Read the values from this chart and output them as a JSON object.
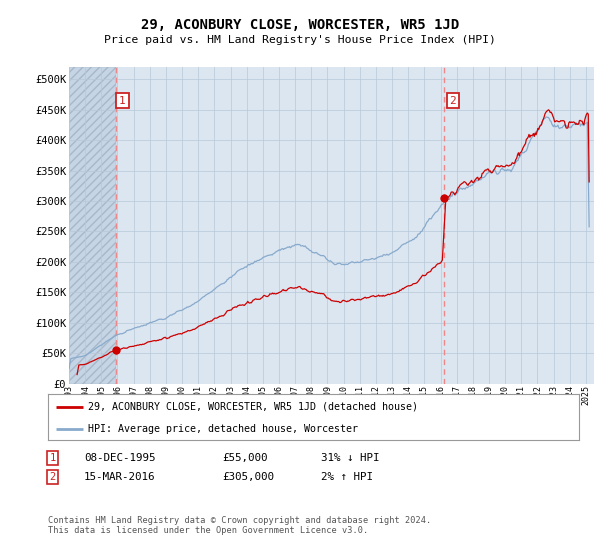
{
  "title": "29, ACONBURY CLOSE, WORCESTER, WR5 1JD",
  "subtitle": "Price paid vs. HM Land Registry's House Price Index (HPI)",
  "ylabel_ticks": [
    "£0",
    "£50K",
    "£100K",
    "£150K",
    "£200K",
    "£250K",
    "£300K",
    "£350K",
    "£400K",
    "£450K",
    "£500K"
  ],
  "ytick_values": [
    0,
    50000,
    100000,
    150000,
    200000,
    250000,
    300000,
    350000,
    400000,
    450000,
    500000
  ],
  "ylim": [
    0,
    520000
  ],
  "xlim_start": 1993.0,
  "xlim_end": 2025.5,
  "hatch_region_end": 1995.92,
  "dashed_line_1_x": 1995.93,
  "dashed_line_2_x": 2016.21,
  "point1_x": 1995.93,
  "point1_y": 55000,
  "point2_x": 2016.21,
  "point2_y": 305000,
  "legend_line1": "29, ACONBURY CLOSE, WORCESTER, WR5 1JD (detached house)",
  "legend_line2": "HPI: Average price, detached house, Worcester",
  "table_row1": [
    "1",
    "08-DEC-1995",
    "£55,000",
    "31% ↓ HPI"
  ],
  "table_row2": [
    "2",
    "15-MAR-2016",
    "£305,000",
    "2% ↑ HPI"
  ],
  "footer": "Contains HM Land Registry data © Crown copyright and database right 2024.\nThis data is licensed under the Open Government Licence v3.0.",
  "bg_color": "#dce6f1",
  "hatch_color": "#c8d8e8",
  "grid_color": "#b8c8d8",
  "line_color_red": "#cc0000",
  "line_color_blue": "#88aacc",
  "point_color": "#cc0000",
  "dashed_color": "#ee8888",
  "box_color": "#cc2222"
}
